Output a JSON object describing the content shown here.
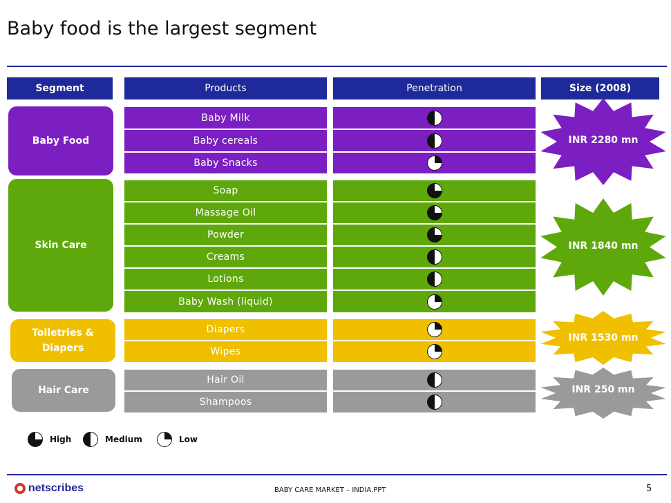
{
  "title": "Baby food is the largest segment",
  "headers": {
    "segment": "Segment",
    "products": "Products",
    "penetration": "Penetration",
    "size": "Size (2008)"
  },
  "colors": {
    "header": "#1f2a9a",
    "baby_food": "#7b1fc2",
    "skin_care": "#5ea80c",
    "toiletries": "#f0c000",
    "hair_care": "#9a9a9a"
  },
  "segments": [
    {
      "name": "Baby Food",
      "size": "INR 2280 mn",
      "products": [
        {
          "name": "Baby Milk",
          "penetration": "medium"
        },
        {
          "name": "Baby cereals",
          "penetration": "medium"
        },
        {
          "name": "Baby Snacks",
          "penetration": "low"
        }
      ]
    },
    {
      "name": "Skin Care",
      "size": "INR 1840 mn",
      "products": [
        {
          "name": "Soap",
          "penetration": "high"
        },
        {
          "name": "Massage Oil",
          "penetration": "high"
        },
        {
          "name": "Powder",
          "penetration": "high"
        },
        {
          "name": "Creams",
          "penetration": "medium"
        },
        {
          "name": "Lotions",
          "penetration": "medium"
        },
        {
          "name": "Baby Wash (liquid)",
          "penetration": "low"
        }
      ]
    },
    {
      "name": "Toiletries & Diapers",
      "size": "INR 1530 mn",
      "products": [
        {
          "name": "Diapers",
          "penetration": "low"
        },
        {
          "name": "Wipes",
          "penetration": "low"
        }
      ]
    },
    {
      "name": "Hair Care",
      "size": "INR 250 mn",
      "products": [
        {
          "name": "Hair Oil",
          "penetration": "medium"
        },
        {
          "name": "Shampoos",
          "penetration": "medium"
        }
      ]
    }
  ],
  "legend": {
    "high": "High",
    "medium": "Medium",
    "low": "Low"
  },
  "footer": {
    "logo": "netscribes",
    "file": "BABY CARE MARKET – INDIA.PPT",
    "page": "5"
  }
}
